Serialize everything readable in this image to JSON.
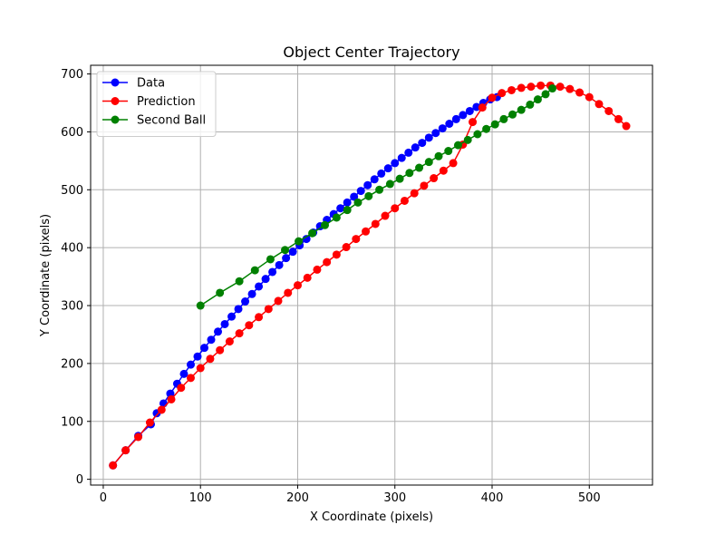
{
  "chart_data": {
    "type": "line",
    "title": "Object Center Trajectory",
    "xlabel": "X Coordinate (pixels)",
    "ylabel": "Y Coordinate (pixels)",
    "xlim": [
      -13,
      565
    ],
    "ylim": [
      -10,
      715
    ],
    "xticks": [
      0,
      100,
      200,
      300,
      400,
      500
    ],
    "yticks": [
      0,
      100,
      200,
      300,
      400,
      500,
      600,
      700
    ],
    "grid": true,
    "legend": "top-left",
    "series": [
      {
        "name": "Data",
        "color": "#0000ff",
        "x": [
          10,
          23,
          36,
          49,
          55,
          62,
          69,
          76,
          83,
          90,
          97,
          104,
          111,
          118,
          125,
          132,
          139,
          146,
          153,
          160,
          167,
          174,
          181,
          188,
          195,
          202,
          209,
          216,
          223,
          230,
          237,
          244,
          251,
          258,
          265,
          272,
          279,
          286,
          293,
          300,
          307,
          314,
          321,
          328,
          335,
          342,
          349,
          356,
          363,
          370,
          377,
          384,
          391,
          398,
          405
        ],
        "y": [
          24,
          50,
          75,
          95,
          114,
          131,
          148,
          165,
          182,
          198,
          212,
          227,
          241,
          255,
          268,
          281,
          294,
          307,
          320,
          333,
          346,
          358,
          370,
          382,
          393,
          404,
          415,
          426,
          437,
          448,
          458,
          468,
          478,
          488,
          498,
          508,
          518,
          528,
          537,
          546,
          555,
          564,
          573,
          581,
          590,
          598,
          606,
          614,
          622,
          629,
          636,
          643,
          650,
          656,
          660
        ]
      },
      {
        "name": "Prediction",
        "color": "#ff0000",
        "x": [
          10,
          23,
          36,
          48,
          60,
          70,
          80,
          90,
          100,
          110,
          120,
          130,
          140,
          150,
          160,
          170,
          180,
          190,
          200,
          210,
          220,
          230,
          240,
          250,
          260,
          270,
          280,
          290,
          300,
          310,
          320,
          330,
          340,
          350,
          360,
          370,
          380,
          390,
          400,
          410,
          420,
          430,
          440,
          450,
          460,
          470,
          480,
          490,
          500,
          510,
          520,
          530,
          538
        ],
        "y": [
          24,
          50,
          73,
          98,
          120,
          138,
          158,
          175,
          192,
          208,
          223,
          238,
          252,
          266,
          280,
          294,
          308,
          322,
          335,
          348,
          362,
          375,
          388,
          401,
          415,
          428,
          441,
          455,
          468,
          481,
          494,
          507,
          520,
          533,
          546,
          578,
          617,
          642,
          659,
          667,
          672,
          676,
          678,
          680,
          680,
          678,
          674,
          668,
          660,
          648,
          636,
          622,
          610
        ]
      },
      {
        "name": "Second Ball",
        "color": "#008000",
        "x": [
          100,
          120,
          140,
          156,
          172,
          187,
          201,
          215,
          228,
          240,
          251,
          262,
          273,
          284,
          295,
          305,
          315,
          325,
          335,
          345,
          355,
          365,
          375,
          385,
          394,
          403,
          412,
          421,
          430,
          439,
          447,
          455,
          462
        ],
        "y": [
          300,
          322,
          342,
          361,
          380,
          396,
          411,
          425,
          439,
          452,
          465,
          478,
          489,
          500,
          510,
          519,
          529,
          538,
          548,
          558,
          567,
          577,
          586,
          596,
          605,
          613,
          622,
          630,
          638,
          647,
          656,
          665,
          675
        ]
      }
    ]
  }
}
